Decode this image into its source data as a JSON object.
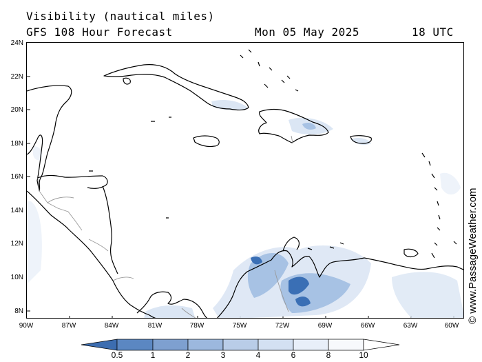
{
  "header": {
    "title": "Visibility (nautical miles)",
    "subtitle": "GFS 108 Hour Forecast",
    "date": "Mon 05 May 2025",
    "time": "18 UTC"
  },
  "credit": "© www.PassageWeather.com",
  "map": {
    "lon_range": [
      -90,
      -59.5
    ],
    "lat_range": [
      7.5,
      24
    ],
    "lat_ticks": [
      "24N",
      "22N",
      "20N",
      "18N",
      "16N",
      "14N",
      "12N",
      "10N",
      "8N"
    ],
    "lon_ticks": [
      "90W",
      "87W",
      "84W",
      "81W",
      "78W",
      "75W",
      "72W",
      "69W",
      "66W",
      "63W",
      "60W"
    ],
    "colors": {
      "land_outline": "#000000",
      "border": "#9a9a9a",
      "low_vis": "#3a6fb5",
      "mid_vis": "#a7c2e4",
      "high_vis": "#dbe6f4"
    }
  },
  "colorbar": {
    "labels": [
      "0.5",
      "1",
      "2",
      "3",
      "4",
      "6",
      "8",
      "10"
    ],
    "colors": [
      "#3c6db0",
      "#5b87c2",
      "#7ea0d0",
      "#9cb8de",
      "#b9cde8",
      "#d3e0f2",
      "#e8eff9",
      "#ffffff"
    ]
  }
}
